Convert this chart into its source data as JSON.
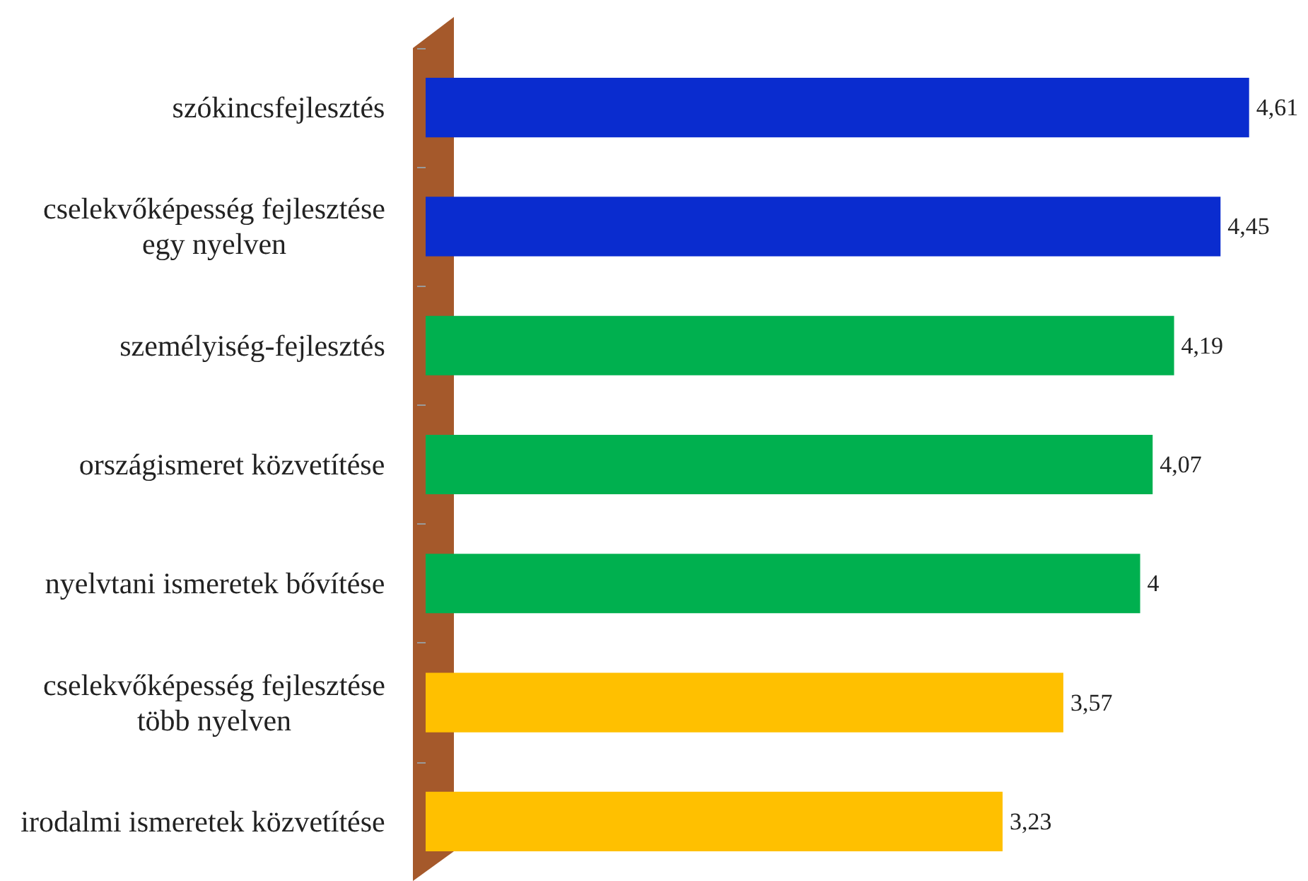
{
  "chart_data": {
    "type": "bar",
    "orientation": "horizontal",
    "categories": [
      "szókincsfejlesztés",
      "cselekvőképesség fejlesztése egy nyelven",
      "személyiség-fejlesztés",
      "országismeret közvetítése",
      "nyelvtani ismeretek bővítése",
      "cselekvőképesség fejlesztése több nyelven",
      "irodalmi ismeretek közvetítése"
    ],
    "values": [
      4.61,
      4.45,
      4.19,
      4.07,
      4,
      3.57,
      3.23
    ],
    "value_labels": [
      "4,61",
      "4,45",
      "4,19",
      "4,07",
      "4",
      "3,57",
      "3,23"
    ],
    "colors": [
      "#0a2ccf",
      "#0a2ccf",
      "#00b04f",
      "#00b04f",
      "#00b04f",
      "#ffc000",
      "#ffc000"
    ],
    "tick_labels": "y"
  }
}
